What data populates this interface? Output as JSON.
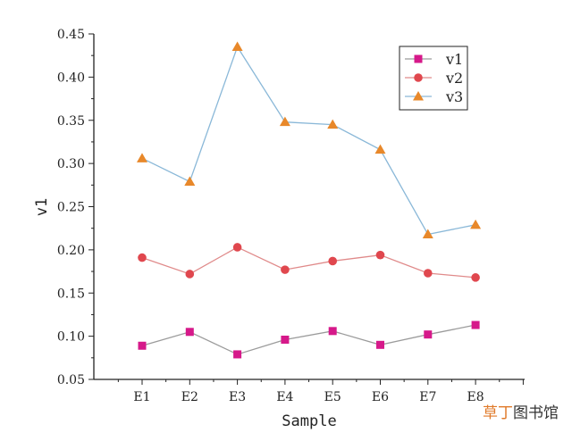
{
  "chart_data": {
    "type": "line",
    "xlabel": "Sample",
    "ylabel": "v1",
    "categories": [
      "E1",
      "E2",
      "E3",
      "E4",
      "E5",
      "E6",
      "E7",
      "E8"
    ],
    "ylim": [
      0.05,
      0.45
    ],
    "yticks": [
      "0.05",
      "0.10",
      "0.15",
      "0.20",
      "0.25",
      "0.30",
      "0.35",
      "0.40",
      "0.45"
    ],
    "grid": false,
    "legend_position": "top-right",
    "series": [
      {
        "name": "v1",
        "marker": "square",
        "marker_color": "#d6198a",
        "line_color": "#9b9b9b",
        "values": [
          0.089,
          0.105,
          0.079,
          0.096,
          0.106,
          0.09,
          0.102,
          0.113
        ]
      },
      {
        "name": "v2",
        "marker": "circle",
        "marker_color": "#e0474e",
        "line_color": "#e08a8a",
        "values": [
          0.191,
          0.172,
          0.203,
          0.177,
          0.187,
          0.194,
          0.173,
          0.168
        ]
      },
      {
        "name": "v3",
        "marker": "triangle",
        "marker_color": "#e8882a",
        "line_color": "#8ab8d8",
        "values": [
          0.306,
          0.279,
          0.435,
          0.348,
          0.345,
          0.316,
          0.218,
          0.229
        ]
      }
    ]
  },
  "watermark": {
    "part1": "草丁",
    "part2": "图书馆"
  }
}
